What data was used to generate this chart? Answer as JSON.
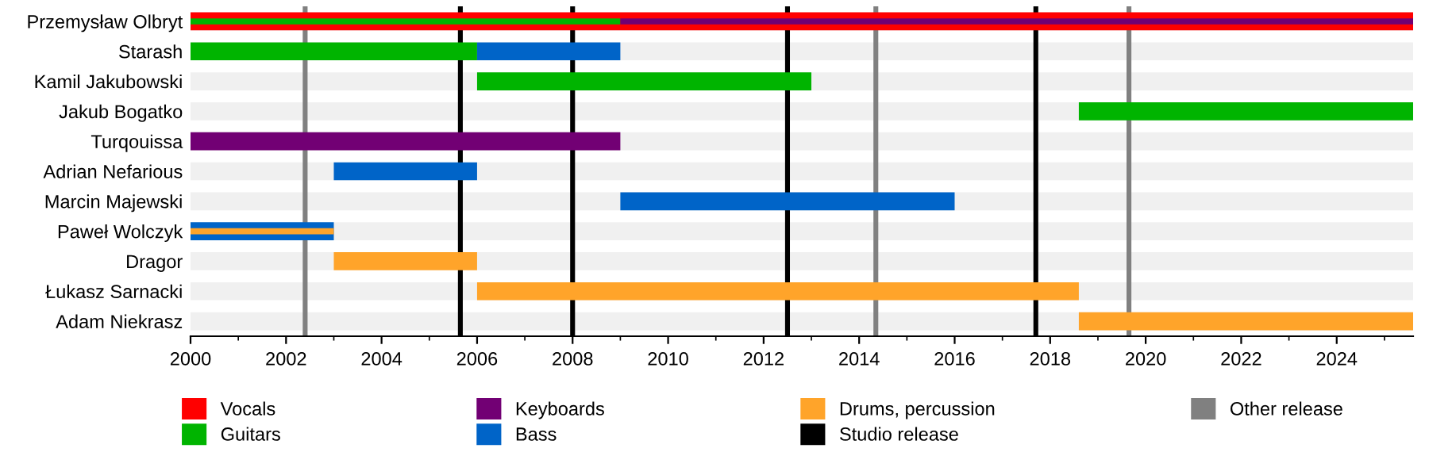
{
  "chart_data": {
    "type": "bar",
    "orientation": "horizontal",
    "categories": [
      "Przemysław Olbryt",
      "Starash",
      "Kamil Jakubowski",
      "Jakub Bogatko",
      "Turqouissa",
      "Adrian Nefarious",
      "Marcin Majewski",
      "Paweł Wolczyk",
      "Dragor",
      "Łukasz Sarnacki",
      "Adam Niekrasz"
    ],
    "series": [
      {
        "name": "Vocals",
        "color": "#ff0000",
        "base": [
          2000,
          null,
          null,
          null,
          null,
          null,
          null,
          null,
          null,
          null,
          null
        ],
        "values": [
          25.6,
          null,
          null,
          null,
          null,
          null,
          null,
          null,
          null,
          null,
          null
        ]
      },
      {
        "name": "Guitars",
        "color": "#00b400",
        "base": [
          2000,
          2000,
          2006,
          2018.6,
          null,
          null,
          null,
          null,
          null,
          null,
          null
        ],
        "values": [
          9,
          6,
          7,
          7,
          null,
          null,
          null,
          null,
          null,
          null,
          null
        ]
      },
      {
        "name": "Keyboards",
        "color": "#720074",
        "base": [
          2009,
          null,
          null,
          null,
          2000,
          null,
          null,
          null,
          null,
          null,
          null
        ],
        "values": [
          16.6,
          null,
          null,
          null,
          9,
          null,
          null,
          null,
          null,
          null,
          null
        ]
      },
      {
        "name": "Bass",
        "color": "#0064c8",
        "base": [
          null,
          2006,
          null,
          null,
          null,
          2003,
          2009,
          2000,
          null,
          null,
          null
        ],
        "values": [
          null,
          3,
          null,
          null,
          null,
          3,
          7,
          3,
          null,
          null,
          null
        ]
      },
      {
        "name": "Drums, percussion",
        "color": "#ffa42a",
        "base": [
          null,
          null,
          null,
          null,
          null,
          null,
          null,
          2000,
          2003,
          2006,
          2018.6
        ],
        "values": [
          null,
          null,
          null,
          null,
          null,
          null,
          null,
          3,
          3,
          12.6,
          7
        ]
      }
    ],
    "ref_lines": [
      {
        "axis": "x",
        "value": 2002.4,
        "label": "Other release",
        "color": "#808080"
      },
      {
        "axis": "x",
        "value": 2005.65,
        "label": "Studio release",
        "color": "#000000"
      },
      {
        "axis": "x",
        "value": 2008.0,
        "color": "#000000"
      },
      {
        "axis": "x",
        "value": 2012.5,
        "color": "#000000"
      },
      {
        "axis": "x",
        "value": 2014.35,
        "color": "#808080"
      },
      {
        "axis": "x",
        "value": 2017.7,
        "color": "#000000"
      },
      {
        "axis": "x",
        "value": 2019.65,
        "color": "#808080"
      }
    ],
    "xlim": [
      2000,
      2025.6
    ],
    "xticks": [
      2000,
      2002,
      2004,
      2006,
      2008,
      2010,
      2012,
      2014,
      2016,
      2018,
      2020,
      2022,
      2024
    ],
    "grid": false,
    "legend": "bottom"
  }
}
